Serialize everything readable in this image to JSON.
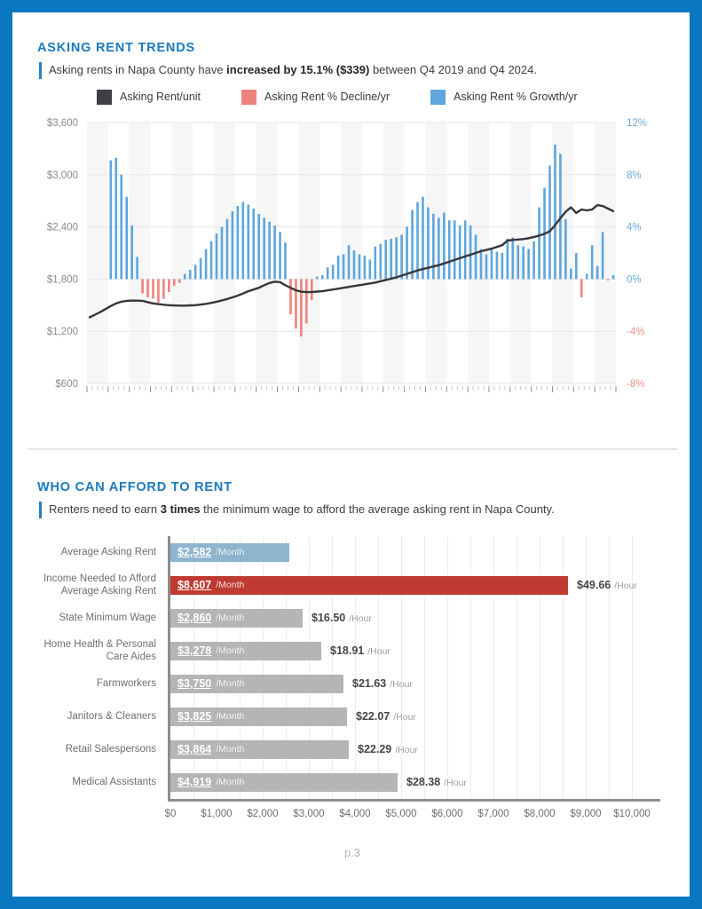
{
  "page": {
    "number_label": "p.3",
    "border_color": "#0a77c1",
    "background": "#ffffff"
  },
  "section_rent_trends": {
    "title": "ASKING RENT TRENDS",
    "title_color": "#1b7abc",
    "subtitle_prefix": "Asking rents in Napa County have ",
    "subtitle_bold": "increased by 15.1% ($339)",
    "subtitle_suffix": " between Q4 2019 and Q4 2024.",
    "legend": [
      {
        "label": "Asking Rent/unit",
        "color": "#3f3f44"
      },
      {
        "label": "Asking Rent % Decline/yr",
        "color": "#ee837d"
      },
      {
        "label": "Asking Rent % Growth/yr",
        "color": "#5fa6dc"
      }
    ]
  },
  "section_afford": {
    "title": "WHO CAN AFFORD TO RENT",
    "title_color": "#1b7abc",
    "subtitle_prefix": "Renters need to earn ",
    "subtitle_bold": "3 times",
    "subtitle_suffix": " the minimum wage to afford the average asking rent in Napa County."
  },
  "chart_data": [
    {
      "type": "combo-bar-line",
      "title": "Asking Rent Trends",
      "x_axis": {
        "frequency": "quarterly",
        "start": "2000 Q1",
        "end": "2024 Q4",
        "tick_labels_shown": false
      },
      "left_axis": {
        "ticks": [
          "$3,600",
          "$3,000",
          "$2,400",
          "$1,800",
          "$1,200",
          "$600"
        ],
        "min": 600,
        "max": 3600,
        "label_color": "#8b8b8b"
      },
      "right_axis": {
        "ticks": [
          "12%",
          "8%",
          "4%",
          "0%",
          "-4%",
          "-8%"
        ],
        "min": -8,
        "max": 12,
        "positive_color": "#6babde",
        "negative_color": "#f0918b"
      },
      "line_series": {
        "name": "Asking Rent/unit",
        "color": "#36363b",
        "start": "2000 Q1",
        "values": [
          1360,
          1390,
          1420,
          1455,
          1490,
          1520,
          1540,
          1550,
          1553,
          1552,
          1550,
          1535,
          1520,
          1512,
          1505,
          1500,
          1497,
          1495,
          1495,
          1498,
          1500,
          1507,
          1515,
          1527,
          1540,
          1555,
          1570,
          1590,
          1610,
          1635,
          1660,
          1680,
          1700,
          1730,
          1755,
          1770,
          1765,
          1730,
          1700,
          1670,
          1655,
          1650,
          1652,
          1656,
          1660,
          1670,
          1680,
          1690,
          1700,
          1710,
          1720,
          1730,
          1740,
          1750,
          1760,
          1775,
          1790,
          1805,
          1820,
          1840,
          1860,
          1880,
          1900,
          1915,
          1930,
          1945,
          1960,
          1980,
          2000,
          2020,
          2040,
          2060,
          2080,
          2100,
          2120,
          2135,
          2150,
          2170,
          2190,
          2243,
          2250,
          2255,
          2260,
          2270,
          2285,
          2300,
          2320,
          2350,
          2420,
          2500,
          2573,
          2624,
          2560,
          2600,
          2590,
          2600,
          2650,
          2640,
          2610,
          2582
        ]
      },
      "bar_series": {
        "name": "Asking Rent % Growth/Decline per year",
        "growth_color": "#5fa6dc",
        "decline_color": "#ee837d",
        "start": "2001 Q1",
        "values": [
          9.1,
          9.3,
          8.0,
          6.3,
          4.1,
          1.7,
          -1.1,
          -1.4,
          -1.5,
          -1.8,
          -1.5,
          -1.0,
          -0.5,
          -0.3,
          0.4,
          0.7,
          1.1,
          1.6,
          2.3,
          2.9,
          3.5,
          4.0,
          4.6,
          5.2,
          5.6,
          5.9,
          5.7,
          5.4,
          5.0,
          4.7,
          4.4,
          4.1,
          3.6,
          2.8,
          -2.7,
          -3.8,
          -4.4,
          -3.4,
          -1.6,
          0.2,
          0.3,
          0.9,
          1.1,
          1.8,
          1.9,
          2.6,
          2.2,
          1.9,
          1.8,
          1.5,
          2.5,
          2.7,
          3.0,
          3.1,
          3.2,
          3.4,
          4.0,
          5.3,
          5.9,
          6.3,
          5.5,
          5.0,
          4.7,
          5.1,
          4.5,
          4.5,
          4.1,
          4.5,
          4.1,
          3.4,
          2.3,
          1.9,
          2.3,
          2.1,
          2.0,
          3.1,
          3.2,
          2.6,
          2.5,
          2.3,
          2.9,
          5.5,
          7.0,
          8.7,
          10.3,
          9.6,
          4.6,
          0.8,
          2.0,
          -1.4,
          0.4,
          2.6,
          1.0,
          3.6,
          -0.1,
          0.3
        ]
      },
      "grid": true,
      "plot_band_color": "#f6f6f6"
    },
    {
      "type": "bar",
      "orientation": "horizontal",
      "categories": [
        "Average Asking Rent",
        "Income Needed to Afford Average Asking Rent",
        "State Minimum Wage",
        "Home Health & Personal Care Aides",
        "Farmworkers",
        "Janitors & Cleaners",
        "Retail Salespersons",
        "Medical Assistants"
      ],
      "values": [
        2582,
        8607,
        2860,
        3278,
        3750,
        3825,
        3864,
        4919
      ],
      "monthly_labels": [
        "$2,582",
        "$8,607",
        "$2,860",
        "$3,278",
        "$3,750",
        "$3,825",
        "$3,864",
        "$4,919"
      ],
      "hourly_labels": [
        "",
        "$49.66",
        "$16.50",
        "$18.91",
        "$21.63",
        "$22.07",
        "$22.29",
        "$28.38"
      ],
      "month_suffix": "/Month",
      "hour_suffix": "/Hour",
      "bar_colors": [
        "#8fb4ce",
        "#bf3a30",
        "#b5b5b5",
        "#b5b5b5",
        "#b5b5b5",
        "#b5b5b5",
        "#b5b5b5",
        "#b5b5b5"
      ],
      "x_ticks": [
        "$0",
        "$1,000",
        "$2,000",
        "$3,000",
        "$4,000",
        "$5,000",
        "$6,000",
        "$7,000",
        "$8,000",
        "$9,000",
        "$10,000"
      ],
      "xlim": [
        0,
        10000
      ],
      "grid": true
    }
  ]
}
